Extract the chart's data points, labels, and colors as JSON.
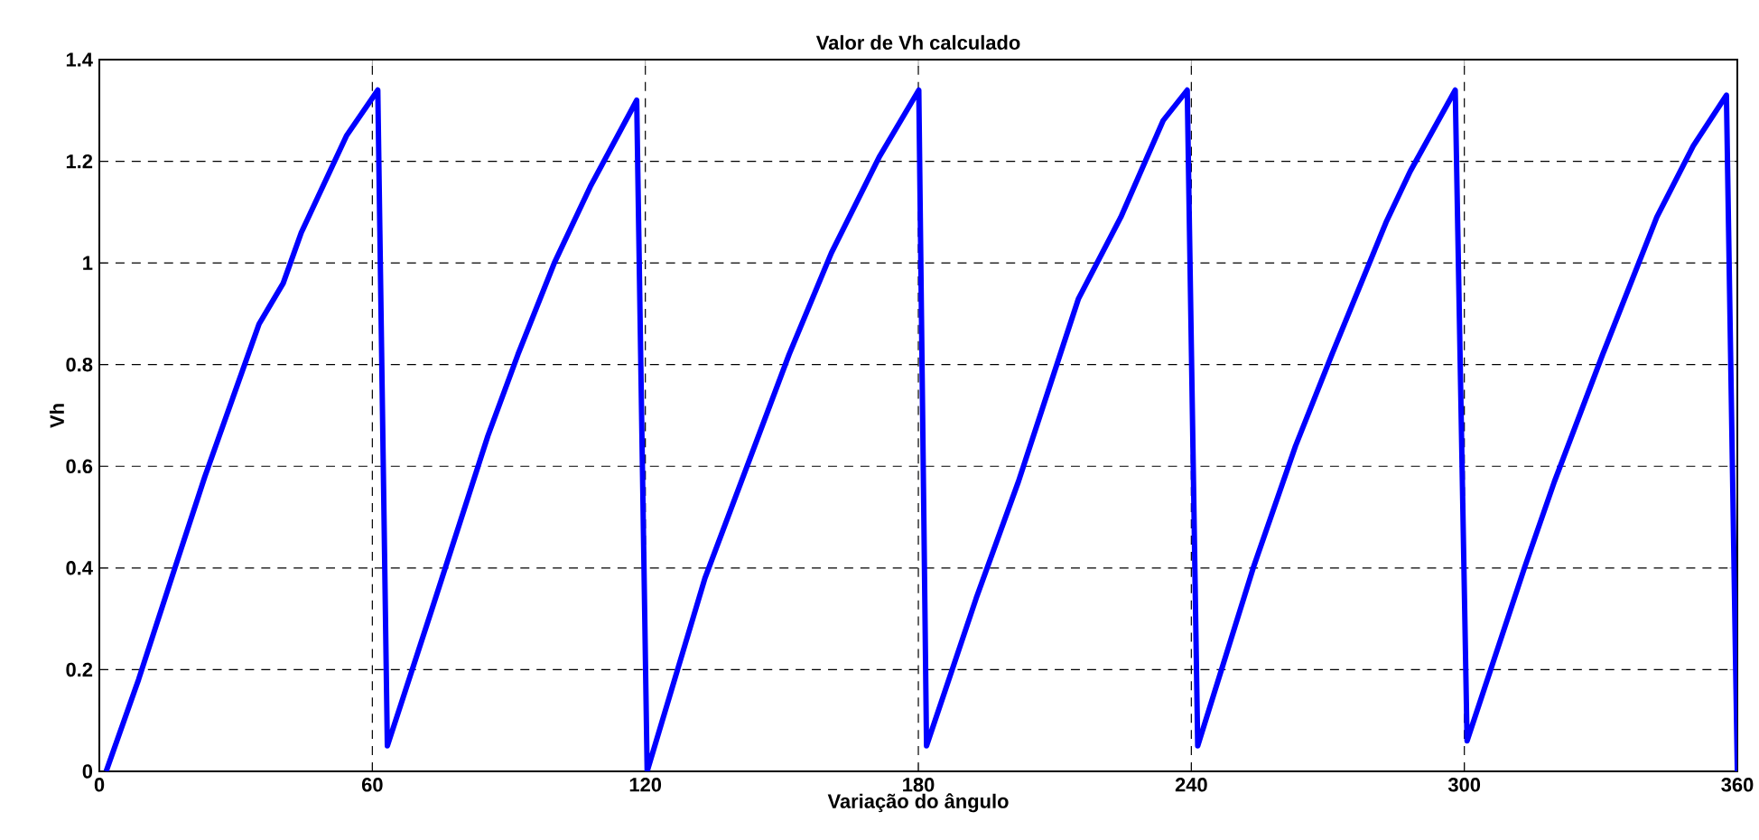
{
  "chart_data": {
    "type": "line",
    "title": "Valor de Vh calculado",
    "xlabel": "Variação do ângulo",
    "ylabel": "Vh",
    "x": [
      1.5,
      8.6,
      16.6,
      23.2,
      35.1,
      40.4,
      44.4,
      54.3,
      61.2,
      63.3,
      73.5,
      85.4,
      92,
      100,
      107.9,
      118.1,
      120.4,
      133.1,
      151.6,
      160.9,
      171.5,
      180.1,
      181.8,
      192.7,
      202,
      215.2,
      224.5,
      233.8,
      239.1,
      241.4,
      253.6,
      262.9,
      270.9,
      282.8,
      288.1,
      298,
      300.6,
      313.2,
      319.8,
      330.4,
      342.3,
      350.3,
      357.6,
      360
    ],
    "series": [
      {
        "color": "#0000ff",
        "values": [
          0,
          0.18,
          0.4,
          0.58,
          0.88,
          0.96,
          1.06,
          1.25,
          1.34,
          0.05,
          0.33,
          0.66,
          0.82,
          1.0,
          1.15,
          1.32,
          0,
          0.38,
          0.82,
          1.02,
          1.21,
          1.34,
          0.05,
          0.34,
          0.57,
          0.93,
          1.09,
          1.28,
          1.34,
          0.05,
          0.4,
          0.64,
          0.82,
          1.08,
          1.18,
          1.34,
          0.06,
          0.4,
          0.57,
          0.82,
          1.09,
          1.23,
          1.33,
          0
        ]
      }
    ],
    "xlim": [
      0,
      360
    ],
    "ylim": [
      0,
      1.4
    ],
    "xticks": [
      0,
      60,
      120,
      180,
      240,
      300,
      360
    ],
    "yticks": [
      0,
      0.2,
      0.4,
      0.6,
      0.8,
      1,
      1.2,
      1.4
    ],
    "grid": true,
    "line_style": "solid",
    "marker": "none"
  }
}
